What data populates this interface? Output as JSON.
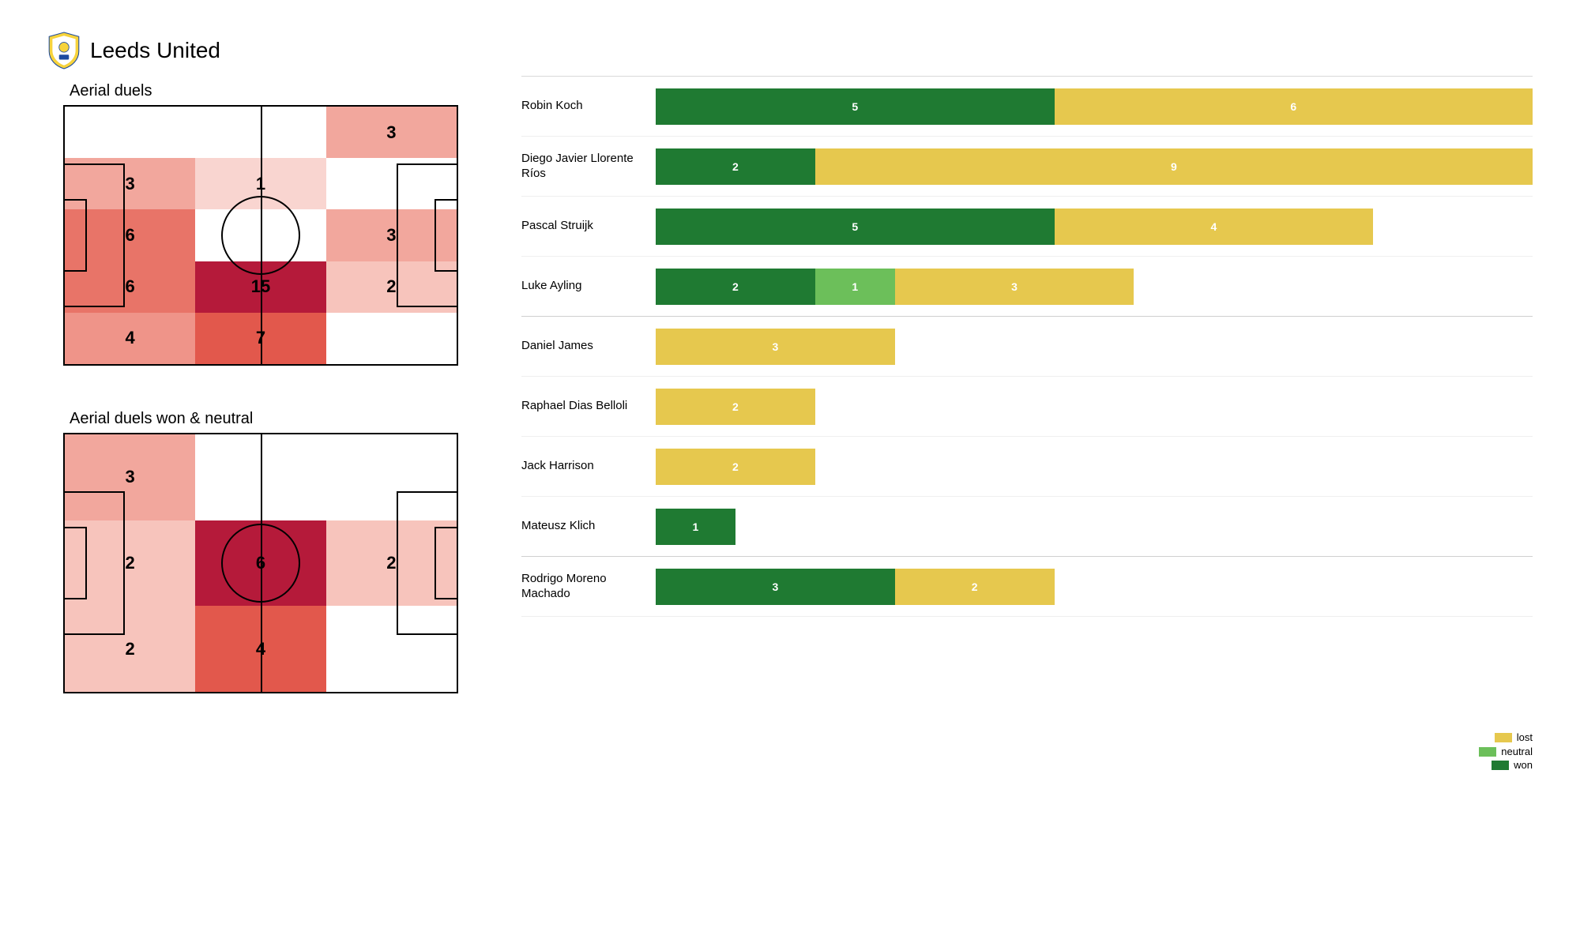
{
  "team": "Leeds United",
  "crest_colors": {
    "outer": "#f7d33b",
    "inner": "#ffffff",
    "accent": "#1b4aa0"
  },
  "heatmap_palette": {
    "0": "#ffffff",
    "1": "#f9d5d0",
    "2": "#f7c4bc",
    "3": "#f2a79d",
    "4": "#ef9489",
    "6": "#e87468",
    "7": "#e2584c",
    "15": "#b51a3a"
  },
  "sections": [
    {
      "title": "Aerial duels",
      "grid": {
        "cols": 3,
        "rows": 5
      },
      "cells": [
        {
          "c": 0,
          "r": 0,
          "v": null
        },
        {
          "c": 1,
          "r": 0,
          "v": null
        },
        {
          "c": 2,
          "r": 0,
          "v": 3
        },
        {
          "c": 0,
          "r": 1,
          "v": 3
        },
        {
          "c": 1,
          "r": 1,
          "v": 1
        },
        {
          "c": 2,
          "r": 1,
          "v": null
        },
        {
          "c": 0,
          "r": 2,
          "v": 6
        },
        {
          "c": 1,
          "r": 2,
          "v": null
        },
        {
          "c": 2,
          "r": 2,
          "v": 3
        },
        {
          "c": 0,
          "r": 3,
          "v": 6
        },
        {
          "c": 1,
          "r": 3,
          "v": 15
        },
        {
          "c": 2,
          "r": 3,
          "v": 2
        },
        {
          "c": 0,
          "r": 4,
          "v": 4
        },
        {
          "c": 1,
          "r": 4,
          "v": 7
        },
        {
          "c": 2,
          "r": 4,
          "v": null
        }
      ]
    },
    {
      "title": "Aerial duels won & neutral",
      "grid": {
        "cols": 3,
        "rows": 3
      },
      "cells": [
        {
          "c": 0,
          "r": 0,
          "v": 3
        },
        {
          "c": 1,
          "r": 0,
          "v": null
        },
        {
          "c": 2,
          "r": 0,
          "v": null
        },
        {
          "c": 0,
          "r": 1,
          "v": 2
        },
        {
          "c": 1,
          "r": 1,
          "v": 6
        },
        {
          "c": 2,
          "r": 1,
          "v": 2
        },
        {
          "c": 0,
          "r": 2,
          "v": 2
        },
        {
          "c": 1,
          "r": 2,
          "v": 4
        },
        {
          "c": 2,
          "r": 2,
          "v": null
        }
      ],
      "palette_override": {
        "6": "#b51a3a",
        "4": "#e2584c"
      }
    }
  ],
  "bars": {
    "max": 11,
    "colors": {
      "won": "#1f7a32",
      "neutral": "#6cbf5a",
      "lost": "#e6c84e"
    },
    "groups": [
      {
        "rows": [
          {
            "name": "Robin Koch",
            "won": 5,
            "neutral": 0,
            "lost": 6
          },
          {
            "name": "Diego Javier Llorente Ríos",
            "won": 2,
            "neutral": 0,
            "lost": 9
          },
          {
            "name": "Pascal Struijk",
            "won": 5,
            "neutral": 0,
            "lost": 4
          },
          {
            "name": "Luke Ayling",
            "won": 2,
            "neutral": 1,
            "lost": 3
          }
        ]
      },
      {
        "rows": [
          {
            "name": "Daniel James",
            "won": 0,
            "neutral": 0,
            "lost": 3
          },
          {
            "name": "Raphael Dias Belloli",
            "won": 0,
            "neutral": 0,
            "lost": 2
          },
          {
            "name": "Jack Harrison",
            "won": 0,
            "neutral": 0,
            "lost": 2
          },
          {
            "name": "Mateusz Klich",
            "won": 1,
            "neutral": 0,
            "lost": 0
          }
        ]
      },
      {
        "rows": [
          {
            "name": "Rodrigo Moreno Machado",
            "won": 3,
            "neutral": 0,
            "lost": 2
          }
        ]
      }
    ],
    "legend": [
      {
        "key": "lost",
        "label": "lost"
      },
      {
        "key": "neutral",
        "label": "neutral"
      },
      {
        "key": "won",
        "label": "won"
      }
    ]
  }
}
